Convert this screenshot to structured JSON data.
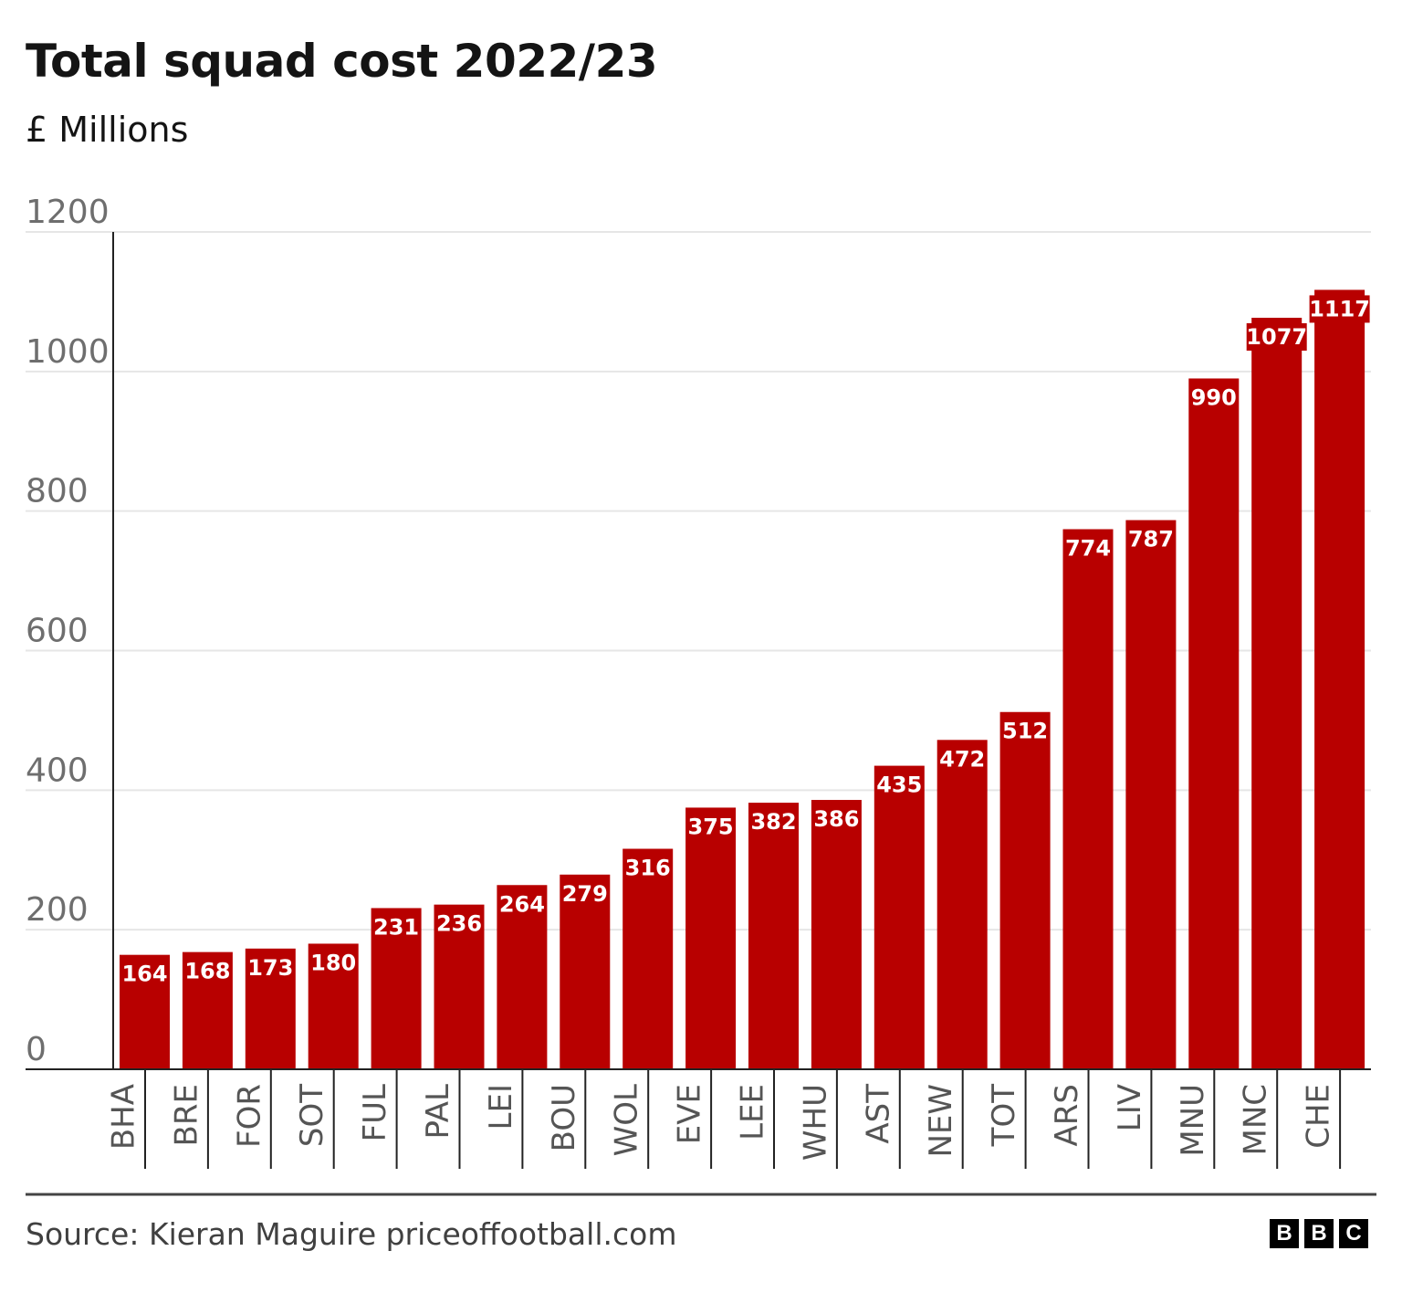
{
  "chart_data": {
    "type": "bar",
    "title": "Total squad cost 2022/23",
    "subtitle": "£ Millions",
    "categories": [
      "BHA",
      "BRE",
      "FOR",
      "SOT",
      "FUL",
      "PAL",
      "LEI",
      "BOU",
      "WOL",
      "EVE",
      "LEE",
      "WHU",
      "AST",
      "NEW",
      "TOT",
      "ARS",
      "LIV",
      "MNU",
      "MNC",
      "CHE"
    ],
    "values": [
      164,
      168,
      173,
      180,
      231,
      236,
      264,
      279,
      316,
      375,
      382,
      386,
      435,
      472,
      512,
      774,
      787,
      990,
      1077,
      1117
    ],
    "ylim": [
      0,
      1200
    ],
    "yticks": [
      "0",
      "200",
      "400",
      "600",
      "800",
      "1000",
      "1200"
    ],
    "grid": true,
    "bar_color": "#b80000",
    "source": "Source: Kieran Maguire priceoffootball.com",
    "logo": [
      "B",
      "B",
      "C"
    ]
  }
}
